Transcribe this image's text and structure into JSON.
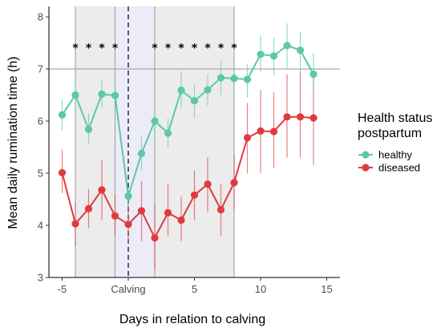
{
  "chart_data": {
    "type": "line",
    "xlabel": "Days in relation to calving",
    "ylabel": "Mean daily rumination time (h)",
    "xlim": [
      -6,
      16
    ],
    "ylim": [
      3,
      8.2
    ],
    "x_ticks": [
      {
        "x": -5,
        "label": "-5"
      },
      {
        "x": 0,
        "label": "Calving"
      },
      {
        "x": 5,
        "label": "5"
      },
      {
        "x": 10,
        "label": "10"
      },
      {
        "x": 15,
        "label": "15"
      }
    ],
    "y_ticks": [
      3,
      4,
      5,
      6,
      7,
      8
    ],
    "reference_line_y": 7,
    "calving_line_x": 0,
    "shaded_regions": [
      {
        "from": -4,
        "to": -1,
        "color": "#ececec"
      },
      {
        "from": -1,
        "to": 2,
        "color": "#ececf8"
      },
      {
        "from": 2,
        "to": 8,
        "color": "#ececec"
      }
    ],
    "significance_marker": "*",
    "significance_days": [
      -4,
      -3,
      -2,
      -1,
      2,
      3,
      4,
      5,
      6,
      7,
      8
    ],
    "legend": {
      "title": [
        "Health status",
        "postpartum"
      ],
      "placement": "right"
    },
    "series": [
      {
        "name": "healthy",
        "color": "#5cc8a8",
        "x": [
          -5,
          -4,
          -3,
          -2,
          -1,
          0,
          1,
          2,
          3,
          4,
          5,
          6,
          7,
          8,
          9,
          10,
          11,
          12,
          13,
          14
        ],
        "y": [
          6.12,
          6.5,
          5.84,
          6.52,
          6.49,
          4.56,
          5.38,
          6.0,
          5.77,
          6.59,
          6.39,
          6.6,
          6.83,
          6.82,
          6.8,
          7.28,
          7.25,
          7.45,
          7.36,
          6.9
        ],
        "lower": [
          5.82,
          6.2,
          5.55,
          6.25,
          6.2,
          4.4,
          5.05,
          5.75,
          5.5,
          6.25,
          6.05,
          6.3,
          6.5,
          6.5,
          6.45,
          6.95,
          6.88,
          7.0,
          6.95,
          6.6
        ],
        "upper": [
          6.42,
          6.8,
          6.15,
          6.8,
          6.78,
          4.72,
          5.7,
          6.25,
          6.05,
          6.95,
          6.7,
          6.9,
          7.15,
          7.15,
          7.1,
          7.65,
          7.6,
          7.88,
          7.72,
          7.3
        ]
      },
      {
        "name": "diseased",
        "color": "#e03a3e",
        "x": [
          -5,
          -4,
          -3,
          -2,
          -1,
          0,
          1,
          2,
          3,
          4,
          5,
          6,
          7,
          8,
          9,
          10,
          11,
          12,
          13,
          14
        ],
        "y": [
          5.01,
          4.03,
          4.32,
          4.68,
          4.18,
          4.02,
          4.28,
          3.76,
          4.24,
          4.1,
          4.58,
          4.79,
          4.3,
          4.82,
          5.68,
          5.81,
          5.8,
          6.08,
          6.08,
          6.06
        ],
        "lower": [
          4.62,
          3.6,
          3.95,
          4.1,
          3.8,
          3.65,
          3.7,
          3.15,
          3.8,
          3.7,
          4.1,
          4.25,
          3.8,
          4.3,
          5.0,
          5.0,
          5.1,
          5.3,
          5.3,
          5.15
        ],
        "upper": [
          5.45,
          4.45,
          4.7,
          5.25,
          4.6,
          4.45,
          4.85,
          4.4,
          4.8,
          4.55,
          5.05,
          5.3,
          4.8,
          5.35,
          6.35,
          6.6,
          6.55,
          6.9,
          6.95,
          6.9
        ]
      }
    ]
  }
}
